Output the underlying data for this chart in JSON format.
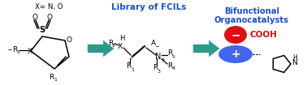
{
  "bg_color": "#ffffff",
  "arrow_color": "#2e9b8a",
  "blue_text_color": "#1a4fcc",
  "red_text_color": "#cc1111",
  "sc": "#000000",
  "ellipse_blue": "#4466ee",
  "ellipse_red": "#dd1111",
  "label1": "Library of FCILs",
  "label2": "Bifunctional\nOrganocatalysts",
  "sub1": "X= N, O",
  "plus": "+",
  "minus": "−",
  "cooh": "COOH"
}
